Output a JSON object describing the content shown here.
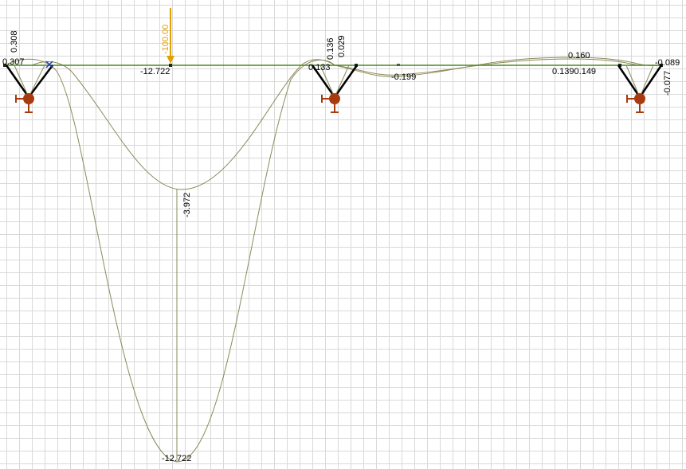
{
  "colors": {
    "beam": "#4a8a1e",
    "curve": "#8b8b5a",
    "load": "#e0a000",
    "support": "#a83a10",
    "grid": "#d9d9d9"
  },
  "load": {
    "value": "-100.00",
    "icon": "arrow-down-icon"
  },
  "labels": {
    "left_support_top": "0.308",
    "left_support_side": "0.307",
    "span1_beam": "-12.722",
    "span1_mid": "-3.972",
    "span1_bottom": "-12.722",
    "mid_support_a": "0.136",
    "mid_support_b": "0.029",
    "mid_support_side": "0.133",
    "span2_neg": "-0.199",
    "span2_peak": "0.160",
    "span2_pair": "0.1390.149",
    "right_support_side": "-0.089",
    "right_support_vert": "-0.077"
  },
  "supports": [
    {
      "name": "left-support",
      "icon": "pin-support-icon"
    },
    {
      "name": "middle-support",
      "icon": "pin-support-icon"
    },
    {
      "name": "right-support",
      "icon": "pin-support-icon"
    }
  ]
}
